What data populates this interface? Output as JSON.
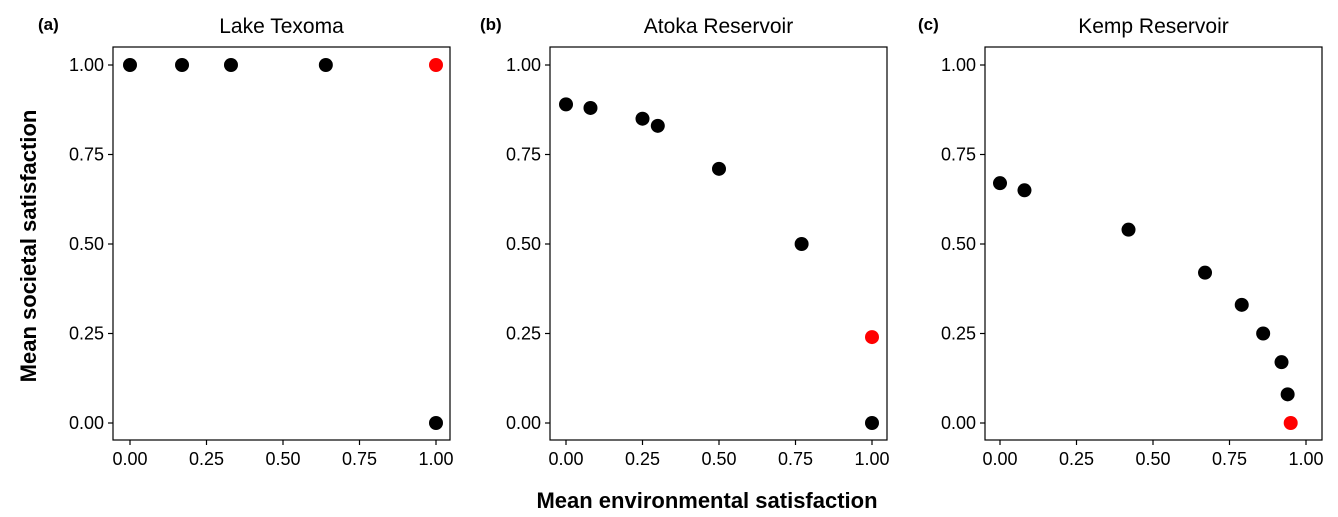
{
  "chart_data": [
    {
      "type": "scatter",
      "tag": "(a)",
      "title": "Lake Texoma",
      "xlim": [
        0,
        1
      ],
      "ylim": [
        0,
        1
      ],
      "x_ticks": [
        "0.00",
        "0.25",
        "0.50",
        "0.75",
        "1.00"
      ],
      "y_ticks": [
        "0.00",
        "0.25",
        "0.50",
        "0.75",
        "1.00"
      ],
      "points": [
        {
          "x": 0.0,
          "y": 1.0,
          "color": "#000000"
        },
        {
          "x": 0.17,
          "y": 1.0,
          "color": "#000000"
        },
        {
          "x": 0.33,
          "y": 1.0,
          "color": "#000000"
        },
        {
          "x": 0.64,
          "y": 1.0,
          "color": "#000000"
        },
        {
          "x": 1.0,
          "y": 1.0,
          "color": "#ff0000"
        },
        {
          "x": 1.0,
          "y": 0.0,
          "color": "#000000"
        }
      ]
    },
    {
      "type": "scatter",
      "tag": "(b)",
      "title": "Atoka Reservoir",
      "xlim": [
        0,
        1
      ],
      "ylim": [
        0,
        1
      ],
      "x_ticks": [
        "0.00",
        "0.25",
        "0.50",
        "0.75",
        "1.00"
      ],
      "y_ticks": [
        "0.00",
        "0.25",
        "0.50",
        "0.75",
        "1.00"
      ],
      "points": [
        {
          "x": 0.0,
          "y": 0.89,
          "color": "#000000"
        },
        {
          "x": 0.08,
          "y": 0.88,
          "color": "#000000"
        },
        {
          "x": 0.25,
          "y": 0.85,
          "color": "#000000"
        },
        {
          "x": 0.3,
          "y": 0.83,
          "color": "#000000"
        },
        {
          "x": 0.5,
          "y": 0.71,
          "color": "#000000"
        },
        {
          "x": 0.77,
          "y": 0.5,
          "color": "#000000"
        },
        {
          "x": 1.0,
          "y": 0.24,
          "color": "#ff0000"
        },
        {
          "x": 1.0,
          "y": 0.0,
          "color": "#000000"
        }
      ]
    },
    {
      "type": "scatter",
      "tag": "(c)",
      "title": "Kemp Reservoir",
      "xlim": [
        0,
        1
      ],
      "ylim": [
        0,
        1
      ],
      "x_ticks": [
        "0.00",
        "0.25",
        "0.50",
        "0.75",
        "1.00"
      ],
      "y_ticks": [
        "0.00",
        "0.25",
        "0.50",
        "0.75",
        "1.00"
      ],
      "points": [
        {
          "x": 0.0,
          "y": 0.67,
          "color": "#000000"
        },
        {
          "x": 0.08,
          "y": 0.65,
          "color": "#000000"
        },
        {
          "x": 0.42,
          "y": 0.54,
          "color": "#000000"
        },
        {
          "x": 0.67,
          "y": 0.42,
          "color": "#000000"
        },
        {
          "x": 0.79,
          "y": 0.33,
          "color": "#000000"
        },
        {
          "x": 0.86,
          "y": 0.25,
          "color": "#000000"
        },
        {
          "x": 0.92,
          "y": 0.17,
          "color": "#000000"
        },
        {
          "x": 0.94,
          "y": 0.08,
          "color": "#000000"
        },
        {
          "x": 0.95,
          "y": 0.0,
          "color": "#ff0000"
        }
      ]
    }
  ],
  "xlabel": "Mean environmental satisfaction",
  "ylabel": "Mean societal satisfaction",
  "grid": false,
  "colors": {
    "point": "#000000",
    "highlight": "#ff0000"
  }
}
